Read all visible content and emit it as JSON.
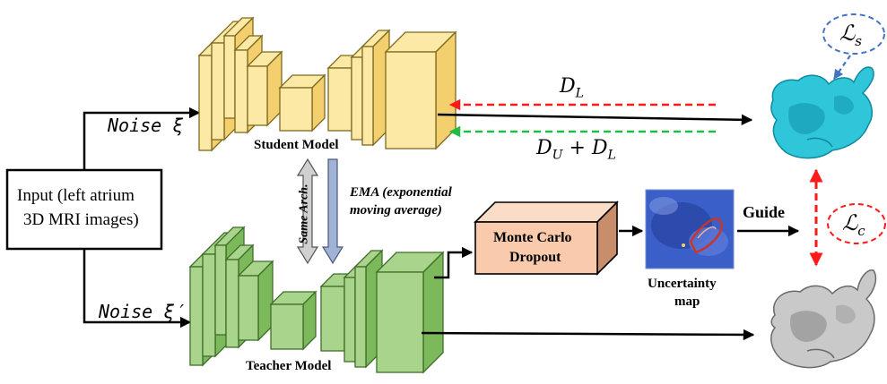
{
  "input_box": {
    "line1": "Input (left atrium",
    "line2": "3D MRI images)"
  },
  "noise": {
    "student": "Noise ξ",
    "teacher": "Noise ξ′"
  },
  "models": {
    "student": "Student Model",
    "teacher": "Teacher Model"
  },
  "connections": {
    "same_arch": "Same Arch.",
    "ema_line1": "EMA (exponential",
    "ema_line2": "moving average)"
  },
  "dropout": {
    "line1": "Monte Carlo",
    "line2": "Dropout"
  },
  "uncertainty": {
    "line1": "Uncertainty",
    "line2": "map"
  },
  "guide": "Guide",
  "losses": {
    "d_l": {
      "base": "D",
      "sub": "L"
    },
    "d_u_plus_d_l": {
      "a": "D",
      "a_sub": "U",
      "op": " + ",
      "b": "D",
      "b_sub": "L"
    },
    "l_s": {
      "base": "ℒ",
      "sub": "s"
    },
    "l_c": {
      "base": "ℒ",
      "sub": "c"
    }
  },
  "colors": {
    "student_fill": "#fde9a6",
    "student_side": "#f3cf6e",
    "student_edge": "#7d6a1e",
    "teacher_fill": "#a8d58b",
    "teacher_side": "#7bb95a",
    "teacher_edge": "#3f6e2a",
    "dropout_fill": "#f9cbac",
    "dropout_side": "#c88e6c",
    "red_dash": "#ff1a1a",
    "green_dash": "#22bb44",
    "blue_dash": "#4472c4",
    "student_output": "#2ec6d8",
    "teacher_output": "#bdbdbd"
  }
}
